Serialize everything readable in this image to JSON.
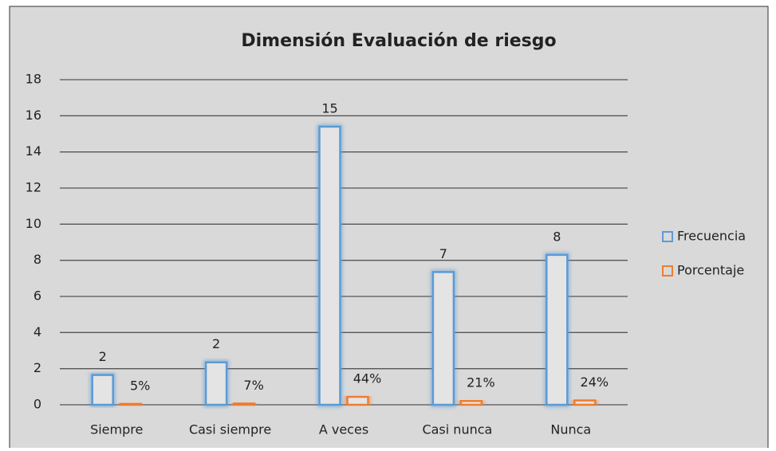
{
  "chart_data": {
    "type": "bar",
    "title": "Dimensión  Evaluación de riesgo",
    "categories": [
      "Siempre",
      "Casi siempre",
      "A veces",
      "Casi nunca",
      "Nunca"
    ],
    "series": [
      {
        "name": "Frecuencia",
        "color": "#5b9bd5",
        "values": [
          1.65,
          2.35,
          15.4,
          7.35,
          8.3
        ],
        "value_labels": [
          "2",
          "2",
          "15",
          "7",
          "8"
        ]
      },
      {
        "name": "Porcentaje",
        "color": "#ed7d31",
        "values": [
          0.05,
          0.07,
          0.44,
          0.21,
          0.24
        ],
        "value_labels": [
          "5%",
          "7%",
          "44%",
          "21%",
          "24%"
        ]
      }
    ],
    "ylim": [
      0,
      18
    ],
    "yticks": [
      0,
      2,
      4,
      6,
      8,
      10,
      12,
      14,
      16,
      18
    ],
    "grid": true,
    "legend": "right"
  }
}
